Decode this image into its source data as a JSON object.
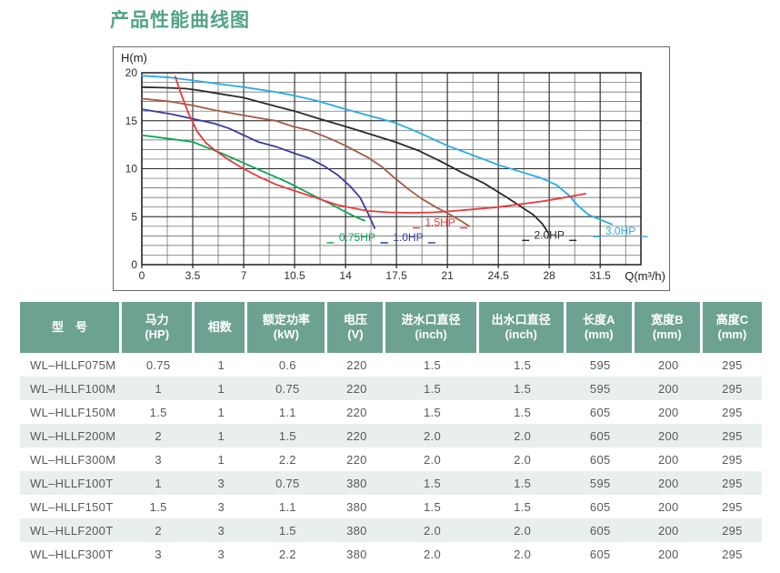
{
  "page": {
    "title": "产品性能曲线图",
    "title_color": "#55a287"
  },
  "chart_data": {
    "type": "line",
    "title": "",
    "xlabel": "Q(m³/h)",
    "ylabel": "H(m)",
    "xlim": [
      0,
      34.3
    ],
    "ylim": [
      0,
      20
    ],
    "x_ticks": [
      0,
      3.5,
      7,
      10.5,
      14,
      17.5,
      21,
      24.5,
      28,
      31.5
    ],
    "x_tick_labels": [
      "0",
      "3.5",
      "7",
      "10.5",
      "14",
      "17.5",
      "21",
      "24.5",
      "28",
      "31.5"
    ],
    "y_ticks": [
      0,
      5,
      10,
      15,
      20
    ],
    "grid": "major+minor",
    "minor_x_step": 1.75,
    "minor_y_step": 1,
    "legend_position": "labels-on-chart",
    "series": [
      {
        "id": "green-0.75hp",
        "label": "0.75HP",
        "color": "#0ba653",
        "points": [
          [
            0,
            13.5
          ],
          [
            2,
            13.1
          ],
          [
            3.5,
            12.8
          ],
          [
            4.5,
            12.2
          ],
          [
            5.5,
            11.6
          ],
          [
            7,
            10.6
          ],
          [
            8.5,
            9.6
          ],
          [
            10,
            8.6
          ],
          [
            11.8,
            7.2
          ],
          [
            13,
            6.3
          ],
          [
            14,
            5.5
          ],
          [
            14.8,
            4.9
          ],
          [
            15.3,
            4.6
          ]
        ]
      },
      {
        "id": "blue-1.0hp",
        "label": "1.0HP",
        "color": "#3a3d9b",
        "points": [
          [
            0,
            16.2
          ],
          [
            2,
            15.7
          ],
          [
            3.5,
            15.2
          ],
          [
            5,
            14.7
          ],
          [
            6,
            14.2
          ],
          [
            7,
            13.5
          ],
          [
            8,
            12.8
          ],
          [
            9.2,
            12.3
          ],
          [
            10.5,
            11.6
          ],
          [
            11.5,
            11.1
          ],
          [
            12.5,
            10.3
          ],
          [
            13.5,
            9.3
          ],
          [
            14.3,
            8.2
          ],
          [
            15,
            7.0
          ],
          [
            15.5,
            5.5
          ],
          [
            16,
            3.8
          ]
        ]
      },
      {
        "id": "brown-1.5hp",
        "label": "1.5HP",
        "color": "#a15c43",
        "points": [
          [
            0,
            17.3
          ],
          [
            2,
            17.0
          ],
          [
            3.5,
            16.6
          ],
          [
            5,
            16.1
          ],
          [
            6.5,
            15.7
          ],
          [
            8,
            15.3
          ],
          [
            9.2,
            15.0
          ],
          [
            10.4,
            14.4
          ],
          [
            11.5,
            14.0
          ],
          [
            13,
            13.1
          ],
          [
            14,
            12.4
          ],
          [
            15.5,
            11.2
          ],
          [
            16.5,
            10.2
          ],
          [
            17.4,
            9.0
          ],
          [
            18.3,
            7.9
          ],
          [
            19.2,
            6.9
          ],
          [
            20.2,
            6.0
          ],
          [
            21.2,
            5.2
          ],
          [
            22,
            4.5
          ],
          [
            22.5,
            4.0
          ]
        ]
      },
      {
        "id": "black-2.0hp",
        "label": "2.0HP",
        "color": "#2b2b2b",
        "points": [
          [
            0,
            18.5
          ],
          [
            1.5,
            18.45
          ],
          [
            3,
            18.35
          ],
          [
            3.8,
            18.2
          ],
          [
            5,
            17.9
          ],
          [
            7,
            17.4
          ],
          [
            9.2,
            16.5
          ],
          [
            10.5,
            16.0
          ],
          [
            12,
            15.3
          ],
          [
            14,
            14.4
          ],
          [
            15.7,
            13.6
          ],
          [
            17.4,
            12.8
          ],
          [
            19,
            11.9
          ],
          [
            20.5,
            10.8
          ],
          [
            22,
            9.6
          ],
          [
            23.5,
            8.5
          ],
          [
            25,
            7.1
          ],
          [
            26,
            6.1
          ],
          [
            26.9,
            5.2
          ],
          [
            27.5,
            4.3
          ],
          [
            27.9,
            3.4
          ]
        ]
      },
      {
        "id": "cyan-3.0hp",
        "label": "3.0HP",
        "color": "#29abe2",
        "points": [
          [
            0,
            19.7
          ],
          [
            2,
            19.5
          ],
          [
            3.5,
            19.2
          ],
          [
            5.5,
            18.8
          ],
          [
            7,
            18.5
          ],
          [
            9.2,
            18.0
          ],
          [
            10.5,
            17.6
          ],
          [
            12,
            17.1
          ],
          [
            14,
            16.2
          ],
          [
            15.7,
            15.5
          ],
          [
            17.4,
            14.8
          ],
          [
            19,
            13.8
          ],
          [
            21,
            12.4
          ],
          [
            22.6,
            11.5
          ],
          [
            24.5,
            10.4
          ],
          [
            26,
            9.7
          ],
          [
            27.5,
            9.0
          ],
          [
            28.5,
            8.3
          ],
          [
            29.3,
            7.3
          ],
          [
            30,
            6.1
          ],
          [
            30.7,
            5.2
          ],
          [
            31.5,
            4.7
          ],
          [
            32.3,
            4.2
          ]
        ]
      },
      {
        "id": "red-curve",
        "label": "",
        "color": "#e8393d",
        "points": [
          [
            2.3,
            19.6
          ],
          [
            2.7,
            17.8
          ],
          [
            3.2,
            15.8
          ],
          [
            3.8,
            13.9
          ],
          [
            4.4,
            12.7
          ],
          [
            5.05,
            11.9
          ],
          [
            6,
            10.9
          ],
          [
            7,
            10.0
          ],
          [
            8,
            9.2
          ],
          [
            9.3,
            8.3
          ],
          [
            10.5,
            7.7
          ],
          [
            11.5,
            7.2
          ],
          [
            12.5,
            6.7
          ],
          [
            13.5,
            6.2
          ],
          [
            14.5,
            5.9
          ],
          [
            15.5,
            5.6
          ],
          [
            17,
            5.45
          ],
          [
            18.5,
            5.4
          ],
          [
            20,
            5.45
          ],
          [
            21.5,
            5.6
          ],
          [
            23,
            5.8
          ],
          [
            24.5,
            6.0
          ],
          [
            26,
            6.3
          ],
          [
            27.5,
            6.6
          ],
          [
            28.7,
            6.9
          ],
          [
            29.8,
            7.2
          ],
          [
            30.5,
            7.4
          ]
        ]
      }
    ],
    "curve_labels": [
      {
        "text": "0.75HP",
        "color": "#0ba653",
        "q": 14.8,
        "h": 2.85
      },
      {
        "text": "1.0HP",
        "color": "#3a3d9b",
        "q": 18.3,
        "h": 2.85
      },
      {
        "text": "1.5HP",
        "color": "#e8393d",
        "q": 20.5,
        "h": 4.4
      },
      {
        "text": "2.0HP",
        "color": "#2b2b2b",
        "q": 28.0,
        "h": 3.1
      },
      {
        "text": "3.0HP",
        "color": "#29abe2",
        "q": 32.9,
        "h": 3.5
      }
    ]
  },
  "table": {
    "header_bg": "#6da292",
    "alt_row_bg": "#e8efec",
    "columns": [
      {
        "label": "型　号",
        "unit": ""
      },
      {
        "label": "马力",
        "unit": "(HP)"
      },
      {
        "label": "相数",
        "unit": ""
      },
      {
        "label": "额定功率",
        "unit": "(kW)"
      },
      {
        "label": "电压",
        "unit": "(V)"
      },
      {
        "label": "进水口直径",
        "unit": "(inch)"
      },
      {
        "label": "出水口直径",
        "unit": "(inch)"
      },
      {
        "label": "长度A",
        "unit": "(mm)"
      },
      {
        "label": "宽度B",
        "unit": "(mm)"
      },
      {
        "label": "高度C",
        "unit": "(mm)"
      }
    ],
    "rows": [
      [
        "WL–HLLF075M",
        "0.75",
        "1",
        "0.6",
        "220",
        "1.5",
        "1.5",
        "595",
        "200",
        "295"
      ],
      [
        "WL–HLLF100M",
        "1",
        "1",
        "0.75",
        "220",
        "1.5",
        "1.5",
        "595",
        "200",
        "295"
      ],
      [
        "WL–HLLF150M",
        "1.5",
        "1",
        "1.1",
        "220",
        "1.5",
        "1.5",
        "605",
        "200",
        "295"
      ],
      [
        "WL–HLLF200M",
        "2",
        "1",
        "1.5",
        "220",
        "2.0",
        "2.0",
        "605",
        "200",
        "295"
      ],
      [
        "WL–HLLF300M",
        "3",
        "1",
        "2.2",
        "220",
        "2.0",
        "2.0",
        "605",
        "200",
        "295"
      ],
      [
        "WL–HLLF100T",
        "1",
        "3",
        "0.75",
        "380",
        "1.5",
        "1.5",
        "595",
        "200",
        "295"
      ],
      [
        "WL–HLLF150T",
        "1.5",
        "3",
        "1.1",
        "380",
        "1.5",
        "1.5",
        "605",
        "200",
        "295"
      ],
      [
        "WL–HLLF200T",
        "2",
        "3",
        "1.5",
        "380",
        "2.0",
        "2.0",
        "605",
        "200",
        "295"
      ],
      [
        "WL–HLLF300T",
        "3",
        "3",
        "2.2",
        "380",
        "2.0",
        "2.0",
        "605",
        "200",
        "295"
      ]
    ]
  }
}
